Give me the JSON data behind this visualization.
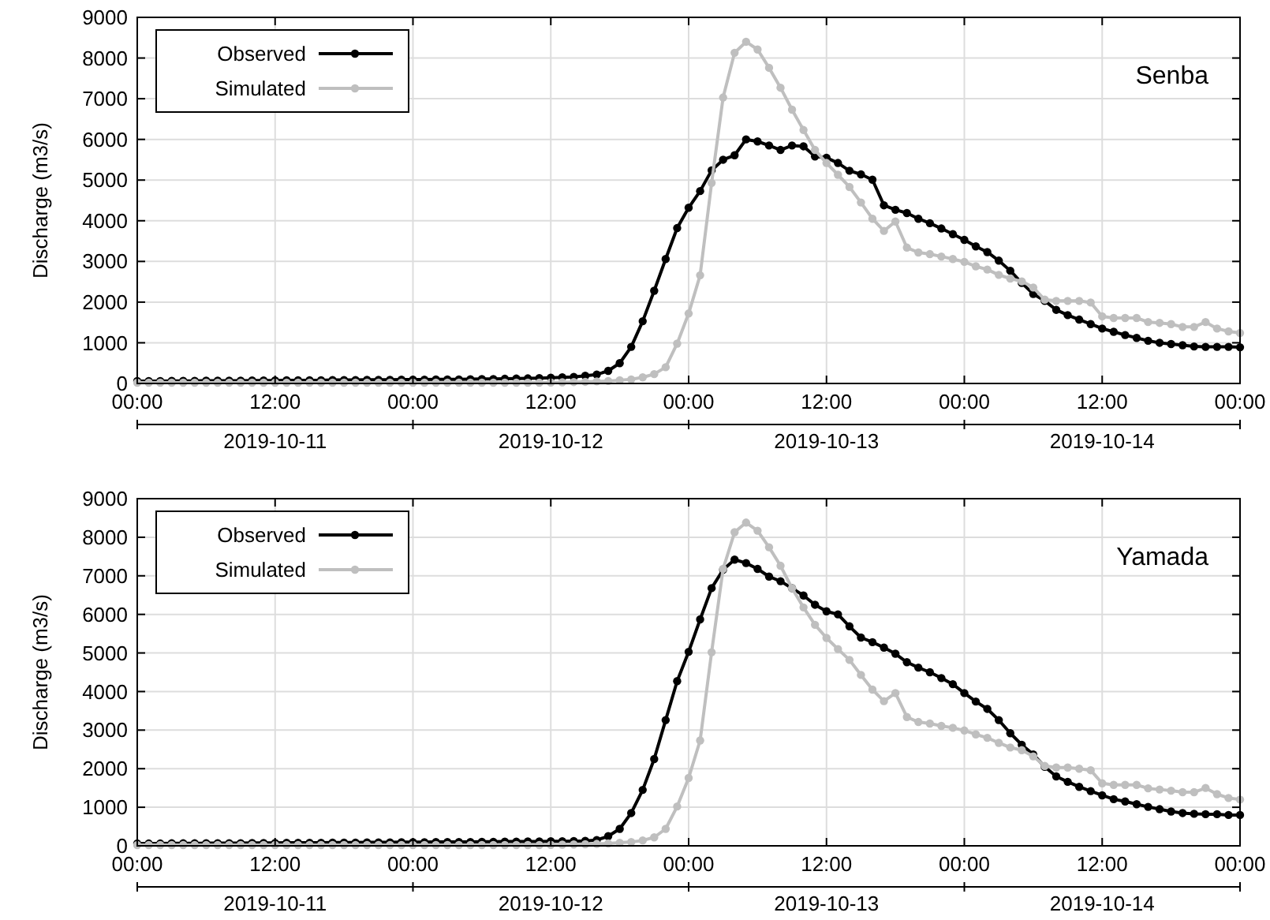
{
  "chart_data": [
    {
      "type": "line",
      "title": "Senba",
      "ylabel": "Discharge (m3/s)",
      "legend": "top left",
      "grid": true,
      "marker": "circle",
      "line_style": "solid",
      "x": [
        "2019-10-11T00:00",
        "2019-10-11T01:00",
        "2019-10-11T02:00",
        "2019-10-11T03:00",
        "2019-10-11T04:00",
        "2019-10-11T05:00",
        "2019-10-11T06:00",
        "2019-10-11T07:00",
        "2019-10-11T08:00",
        "2019-10-11T09:00",
        "2019-10-11T10:00",
        "2019-10-11T11:00",
        "2019-10-11T12:00",
        "2019-10-11T13:00",
        "2019-10-11T14:00",
        "2019-10-11T15:00",
        "2019-10-11T16:00",
        "2019-10-11T17:00",
        "2019-10-11T18:00",
        "2019-10-11T19:00",
        "2019-10-11T20:00",
        "2019-10-11T21:00",
        "2019-10-11T22:00",
        "2019-10-11T23:00",
        "2019-10-12T00:00",
        "2019-10-12T01:00",
        "2019-10-12T02:00",
        "2019-10-12T03:00",
        "2019-10-12T04:00",
        "2019-10-12T05:00",
        "2019-10-12T06:00",
        "2019-10-12T07:00",
        "2019-10-12T08:00",
        "2019-10-12T09:00",
        "2019-10-12T10:00",
        "2019-10-12T11:00",
        "2019-10-12T12:00",
        "2019-10-12T13:00",
        "2019-10-12T14:00",
        "2019-10-12T15:00",
        "2019-10-12T16:00",
        "2019-10-12T17:00",
        "2019-10-12T18:00",
        "2019-10-12T19:00",
        "2019-10-12T20:00",
        "2019-10-12T21:00",
        "2019-10-12T22:00",
        "2019-10-12T23:00",
        "2019-10-13T00:00",
        "2019-10-13T01:00",
        "2019-10-13T02:00",
        "2019-10-13T03:00",
        "2019-10-13T04:00",
        "2019-10-13T05:00",
        "2019-10-13T06:00",
        "2019-10-13T07:00",
        "2019-10-13T08:00",
        "2019-10-13T09:00",
        "2019-10-13T10:00",
        "2019-10-13T11:00",
        "2019-10-13T12:00",
        "2019-10-13T13:00",
        "2019-10-13T14:00",
        "2019-10-13T15:00",
        "2019-10-13T16:00",
        "2019-10-13T17:00",
        "2019-10-13T18:00",
        "2019-10-13T19:00",
        "2019-10-13T20:00",
        "2019-10-13T21:00",
        "2019-10-13T22:00",
        "2019-10-13T23:00",
        "2019-10-14T00:00",
        "2019-10-14T01:00",
        "2019-10-14T02:00",
        "2019-10-14T03:00",
        "2019-10-14T04:00",
        "2019-10-14T05:00",
        "2019-10-14T06:00",
        "2019-10-14T07:00",
        "2019-10-14T08:00",
        "2019-10-14T09:00",
        "2019-10-14T10:00",
        "2019-10-14T11:00",
        "2019-10-14T12:00",
        "2019-10-14T13:00",
        "2019-10-14T14:00",
        "2019-10-14T15:00",
        "2019-10-14T16:00",
        "2019-10-14T17:00",
        "2019-10-14T18:00",
        "2019-10-14T19:00",
        "2019-10-14T20:00",
        "2019-10-14T21:00",
        "2019-10-14T22:00",
        "2019-10-14T23:00",
        "2019-10-15T00:00"
      ],
      "xlim": [
        "2019-10-11T00:00",
        "2019-10-15T00:00"
      ],
      "xticks": [
        {
          "value": "2019-10-11T00:00",
          "label": "00:00"
        },
        {
          "value": "2019-10-11T12:00",
          "label": "12:00"
        },
        {
          "value": "2019-10-12T00:00",
          "label": "00:00"
        },
        {
          "value": "2019-10-12T12:00",
          "label": "12:00"
        },
        {
          "value": "2019-10-13T00:00",
          "label": "00:00"
        },
        {
          "value": "2019-10-13T12:00",
          "label": "12:00"
        },
        {
          "value": "2019-10-14T00:00",
          "label": "00:00"
        },
        {
          "value": "2019-10-14T12:00",
          "label": "12:00"
        },
        {
          "value": "2019-10-15T00:00",
          "label": "00:00"
        }
      ],
      "x2lim": [
        "2019-10-11T00:00",
        "2019-10-15T00:00"
      ],
      "x2ticks": [
        {
          "value": "2019-10-11T00:00",
          "label": null
        },
        {
          "value": "2019-10-11T12:00",
          "label": "2019-10-11"
        },
        {
          "value": "2019-10-12T00:00",
          "label": null
        },
        {
          "value": "2019-10-12T12:00",
          "label": "2019-10-12"
        },
        {
          "value": "2019-10-13T00:00",
          "label": null
        },
        {
          "value": "2019-10-13T12:00",
          "label": "2019-10-13"
        },
        {
          "value": "2019-10-14T00:00",
          "label": null
        },
        {
          "value": "2019-10-14T12:00",
          "label": "2019-10-14"
        },
        {
          "value": "2019-10-15T00:00",
          "label": null
        }
      ],
      "ylim": [
        0,
        9000
      ],
      "yticks": [
        0,
        1000,
        2000,
        3000,
        4000,
        5000,
        6000,
        7000,
        8000,
        9000
      ],
      "series": [
        {
          "name": "Observed",
          "color": "#000000",
          "values": [
            60,
            60,
            60,
            65,
            65,
            65,
            70,
            70,
            70,
            70,
            75,
            75,
            75,
            80,
            80,
            80,
            80,
            85,
            85,
            85,
            90,
            90,
            90,
            95,
            95,
            95,
            100,
            100,
            100,
            105,
            110,
            110,
            115,
            120,
            125,
            130,
            140,
            150,
            160,
            190,
            220,
            310,
            500,
            900,
            1530,
            2280,
            3060,
            3820,
            4320,
            4730,
            5240,
            5500,
            5610,
            6000,
            5950,
            5850,
            5740,
            5850,
            5830,
            5580,
            5550,
            5420,
            5230,
            5140,
            5010,
            4380,
            4270,
            4190,
            4050,
            3940,
            3810,
            3670,
            3530,
            3370,
            3230,
            3020,
            2770,
            2470,
            2200,
            2030,
            1810,
            1680,
            1570,
            1460,
            1350,
            1270,
            1190,
            1120,
            1050,
            1000,
            970,
            940,
            910,
            900,
            900,
            900,
            890
          ]
        },
        {
          "name": "Simulated",
          "color": "#bfbfbf",
          "values": [
            20,
            20,
            20,
            20,
            20,
            20,
            20,
            20,
            20,
            20,
            20,
            20,
            20,
            20,
            20,
            20,
            20,
            20,
            20,
            20,
            20,
            20,
            20,
            20,
            20,
            20,
            20,
            20,
            20,
            20,
            20,
            20,
            20,
            20,
            20,
            20,
            25,
            30,
            35,
            40,
            50,
            60,
            80,
            100,
            150,
            230,
            400,
            980,
            1720,
            2660,
            4930,
            7030,
            8130,
            8400,
            8210,
            7760,
            7270,
            6730,
            6230,
            5740,
            5420,
            5130,
            4830,
            4450,
            4050,
            3750,
            3980,
            3340,
            3220,
            3180,
            3120,
            3060,
            2990,
            2880,
            2800,
            2670,
            2580,
            2510,
            2360,
            2060,
            2030,
            2030,
            2030,
            1990,
            1650,
            1610,
            1610,
            1610,
            1510,
            1490,
            1460,
            1390,
            1390,
            1510,
            1350,
            1280,
            1240
          ]
        }
      ]
    },
    {
      "type": "line",
      "title": "Yamada",
      "ylabel": "Discharge (m3/s)",
      "legend": "top left",
      "grid": true,
      "marker": "circle",
      "line_style": "solid",
      "x": [
        "2019-10-11T00:00",
        "2019-10-11T01:00",
        "2019-10-11T02:00",
        "2019-10-11T03:00",
        "2019-10-11T04:00",
        "2019-10-11T05:00",
        "2019-10-11T06:00",
        "2019-10-11T07:00",
        "2019-10-11T08:00",
        "2019-10-11T09:00",
        "2019-10-11T10:00",
        "2019-10-11T11:00",
        "2019-10-11T12:00",
        "2019-10-11T13:00",
        "2019-10-11T14:00",
        "2019-10-11T15:00",
        "2019-10-11T16:00",
        "2019-10-11T17:00",
        "2019-10-11T18:00",
        "2019-10-11T19:00",
        "2019-10-11T20:00",
        "2019-10-11T21:00",
        "2019-10-11T22:00",
        "2019-10-11T23:00",
        "2019-10-12T00:00",
        "2019-10-12T01:00",
        "2019-10-12T02:00",
        "2019-10-12T03:00",
        "2019-10-12T04:00",
        "2019-10-12T05:00",
        "2019-10-12T06:00",
        "2019-10-12T07:00",
        "2019-10-12T08:00",
        "2019-10-12T09:00",
        "2019-10-12T10:00",
        "2019-10-12T11:00",
        "2019-10-12T12:00",
        "2019-10-12T13:00",
        "2019-10-12T14:00",
        "2019-10-12T15:00",
        "2019-10-12T16:00",
        "2019-10-12T17:00",
        "2019-10-12T18:00",
        "2019-10-12T19:00",
        "2019-10-12T20:00",
        "2019-10-12T21:00",
        "2019-10-12T22:00",
        "2019-10-12T23:00",
        "2019-10-13T00:00",
        "2019-10-13T01:00",
        "2019-10-13T02:00",
        "2019-10-13T03:00",
        "2019-10-13T04:00",
        "2019-10-13T05:00",
        "2019-10-13T06:00",
        "2019-10-13T07:00",
        "2019-10-13T08:00",
        "2019-10-13T09:00",
        "2019-10-13T10:00",
        "2019-10-13T11:00",
        "2019-10-13T12:00",
        "2019-10-13T13:00",
        "2019-10-13T14:00",
        "2019-10-13T15:00",
        "2019-10-13T16:00",
        "2019-10-13T17:00",
        "2019-10-13T18:00",
        "2019-10-13T19:00",
        "2019-10-13T20:00",
        "2019-10-13T21:00",
        "2019-10-13T22:00",
        "2019-10-13T23:00",
        "2019-10-14T00:00",
        "2019-10-14T01:00",
        "2019-10-14T02:00",
        "2019-10-14T03:00",
        "2019-10-14T04:00",
        "2019-10-14T05:00",
        "2019-10-14T06:00",
        "2019-10-14T07:00",
        "2019-10-14T08:00",
        "2019-10-14T09:00",
        "2019-10-14T10:00",
        "2019-10-14T11:00",
        "2019-10-14T12:00",
        "2019-10-14T13:00",
        "2019-10-14T14:00",
        "2019-10-14T15:00",
        "2019-10-14T16:00",
        "2019-10-14T17:00",
        "2019-10-14T18:00",
        "2019-10-14T19:00",
        "2019-10-14T20:00",
        "2019-10-14T21:00",
        "2019-10-14T22:00",
        "2019-10-14T23:00",
        "2019-10-15T00:00"
      ],
      "xlim": [
        "2019-10-11T00:00",
        "2019-10-15T00:00"
      ],
      "xticks": [
        {
          "value": "2019-10-11T00:00",
          "label": "00:00"
        },
        {
          "value": "2019-10-11T12:00",
          "label": "12:00"
        },
        {
          "value": "2019-10-12T00:00",
          "label": "00:00"
        },
        {
          "value": "2019-10-12T12:00",
          "label": "12:00"
        },
        {
          "value": "2019-10-13T00:00",
          "label": "00:00"
        },
        {
          "value": "2019-10-13T12:00",
          "label": "12:00"
        },
        {
          "value": "2019-10-14T00:00",
          "label": "00:00"
        },
        {
          "value": "2019-10-14T12:00",
          "label": "12:00"
        },
        {
          "value": "2019-10-15T00:00",
          "label": "00:00"
        }
      ],
      "x2lim": [
        "2019-10-11T00:00",
        "2019-10-15T00:00"
      ],
      "x2ticks": [
        {
          "value": "2019-10-11T00:00",
          "label": null
        },
        {
          "value": "2019-10-11T12:00",
          "label": "2019-10-11"
        },
        {
          "value": "2019-10-12T00:00",
          "label": null
        },
        {
          "value": "2019-10-12T12:00",
          "label": "2019-10-12"
        },
        {
          "value": "2019-10-13T00:00",
          "label": null
        },
        {
          "value": "2019-10-13T12:00",
          "label": "2019-10-13"
        },
        {
          "value": "2019-10-14T00:00",
          "label": null
        },
        {
          "value": "2019-10-14T12:00",
          "label": "2019-10-14"
        },
        {
          "value": "2019-10-15T00:00",
          "label": null
        }
      ],
      "ylim": [
        0,
        9000
      ],
      "yticks": [
        0,
        1000,
        2000,
        3000,
        4000,
        5000,
        6000,
        7000,
        8000,
        9000
      ],
      "series": [
        {
          "name": "Observed",
          "color": "#000000",
          "values": [
            60,
            60,
            60,
            65,
            65,
            65,
            70,
            70,
            70,
            70,
            75,
            75,
            75,
            80,
            80,
            80,
            80,
            85,
            85,
            85,
            90,
            90,
            90,
            95,
            95,
            95,
            100,
            100,
            100,
            100,
            105,
            105,
            110,
            110,
            115,
            115,
            120,
            120,
            125,
            130,
            150,
            250,
            440,
            850,
            1450,
            2250,
            3260,
            4270,
            5030,
            5870,
            6680,
            7160,
            7420,
            7330,
            7180,
            6980,
            6860,
            6680,
            6490,
            6250,
            6080,
            6000,
            5690,
            5400,
            5280,
            5140,
            4980,
            4760,
            4620,
            4500,
            4350,
            4190,
            3960,
            3740,
            3550,
            3260,
            2920,
            2620,
            2370,
            2050,
            1800,
            1660,
            1530,
            1420,
            1310,
            1210,
            1150,
            1080,
            1010,
            950,
            890,
            850,
            830,
            820,
            820,
            800,
            800
          ]
        },
        {
          "name": "Simulated",
          "color": "#bfbfbf",
          "values": [
            20,
            20,
            20,
            20,
            20,
            20,
            20,
            20,
            20,
            20,
            20,
            20,
            20,
            20,
            20,
            20,
            20,
            20,
            20,
            20,
            20,
            20,
            20,
            20,
            20,
            20,
            20,
            20,
            20,
            20,
            20,
            20,
            20,
            20,
            20,
            20,
            25,
            30,
            35,
            40,
            50,
            60,
            80,
            100,
            140,
            220,
            440,
            1020,
            1760,
            2730,
            5020,
            7180,
            8130,
            8380,
            8170,
            7740,
            7260,
            6680,
            6180,
            5730,
            5390,
            5100,
            4820,
            4430,
            4050,
            3750,
            3960,
            3340,
            3210,
            3170,
            3110,
            3060,
            2990,
            2890,
            2800,
            2670,
            2550,
            2480,
            2320,
            2070,
            2030,
            2030,
            2000,
            1960,
            1620,
            1580,
            1580,
            1580,
            1490,
            1460,
            1430,
            1390,
            1390,
            1500,
            1340,
            1240,
            1200
          ]
        }
      ]
    }
  ]
}
